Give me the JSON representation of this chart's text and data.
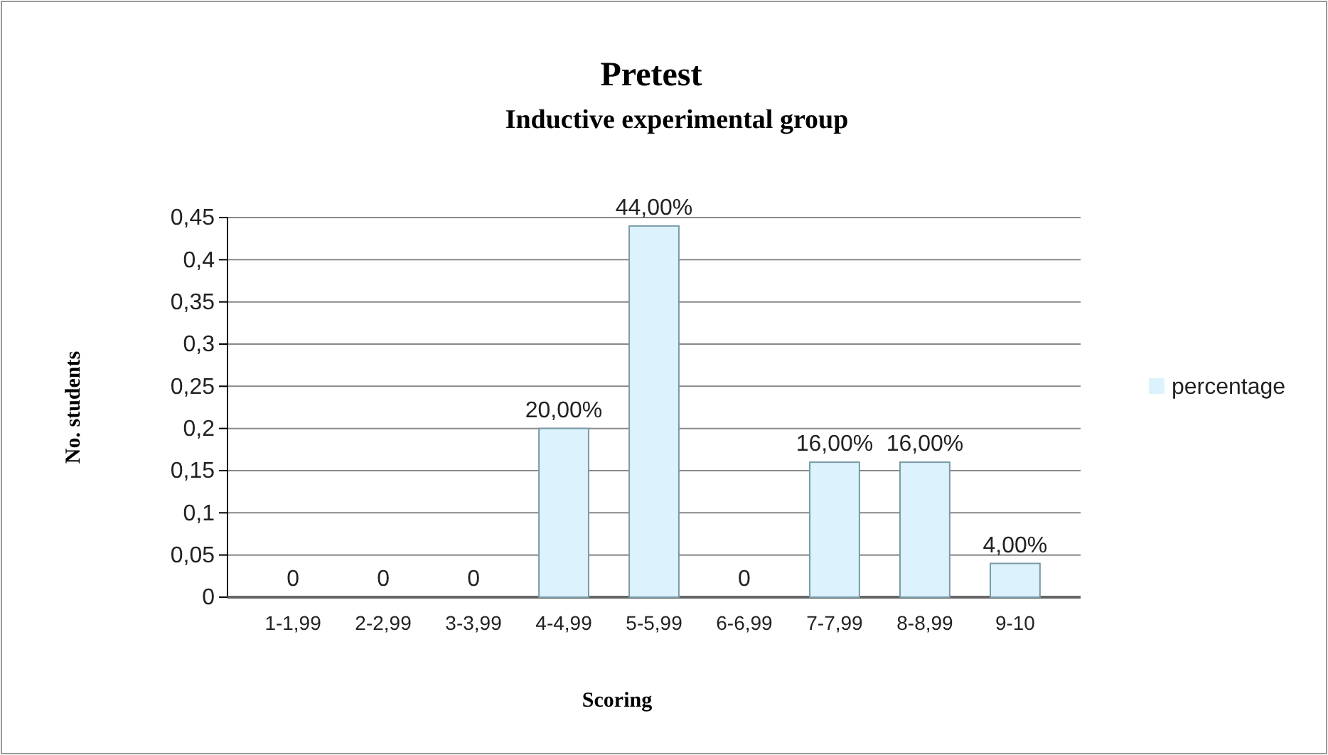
{
  "chart_data": {
    "type": "bar",
    "title": "Pretest",
    "subtitle": "Inductive experimental group",
    "xlabel": "Scoring",
    "ylabel": "No. students",
    "categories": [
      "1-1,99",
      "2-2,99",
      "3-3,99",
      "4-4,99",
      "5-5,99",
      "6-6,99",
      "7-7,99",
      "8-8,99",
      "9-10"
    ],
    "series": [
      {
        "name": "percentage",
        "color": "#dcf2fc",
        "values": [
          0,
          0,
          0,
          0.2,
          0.44,
          0,
          0.16,
          0.16,
          0.04
        ],
        "value_labels": [
          "0",
          "0",
          "0",
          "20,00%",
          "44,00%",
          "0",
          "16,00%",
          "16,00%",
          "4,00%"
        ]
      }
    ],
    "ylim": [
      0,
      0.45
    ],
    "yticks": [
      0,
      {
        "value": 0.05,
        "label": "0,05"
      },
      {
        "value": 0.1,
        "label": "0,1"
      },
      {
        "value": 0.15,
        "label": "0,15"
      },
      {
        "value": 0.2,
        "label": "0,2"
      },
      {
        "value": 0.25,
        "label": "0,25"
      },
      {
        "value": 0.3,
        "label": "0,3"
      },
      {
        "value": 0.35,
        "label": "0,35"
      },
      {
        "value": 0.4,
        "label": "0,4"
      },
      {
        "value": 0.45,
        "label": "0,45"
      }
    ],
    "grid": "y",
    "legend": "right"
  }
}
